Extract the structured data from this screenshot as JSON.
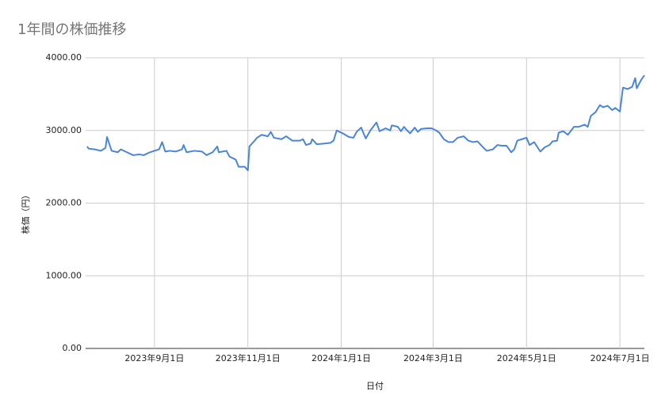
{
  "chart_data": {
    "type": "line",
    "title": "1年間の株価推移",
    "x_label": "日付",
    "y_label": "株価（円）",
    "color": "#4a86d8",
    "grid": true,
    "xlim": [
      "2023-07-18",
      "2024-07-17"
    ],
    "xticks": [
      {
        "value": "2023-09-01",
        "label": "2023年9月1日"
      },
      {
        "value": "2023-11-01",
        "label": "2023年11月1日"
      },
      {
        "value": "2024-01-01",
        "label": "2024年1月1日"
      },
      {
        "value": "2024-03-01",
        "label": "2024年3月1日"
      },
      {
        "value": "2024-05-01",
        "label": "2024年5月1日"
      },
      {
        "value": "2024-07-01",
        "label": "2024年7月1日"
      }
    ],
    "ylim": [
      0,
      4000
    ],
    "yticks": [
      {
        "value": 0,
        "label": "0.00"
      },
      {
        "value": 1000,
        "label": "1000.00"
      },
      {
        "value": 2000,
        "label": "2000.00"
      },
      {
        "value": 3000,
        "label": "3000.00"
      },
      {
        "value": 4000,
        "label": "4000.00"
      }
    ],
    "x": [
      "2023-07-19",
      "2023-07-20",
      "2023-07-24",
      "2023-07-28",
      "2023-07-31",
      "2023-08-01",
      "2023-08-04",
      "2023-08-08",
      "2023-08-10",
      "2023-08-14",
      "2023-08-18",
      "2023-08-22",
      "2023-08-25",
      "2023-08-29",
      "2023-09-01",
      "2023-09-04",
      "2023-09-06",
      "2023-09-08",
      "2023-09-11",
      "2023-09-15",
      "2023-09-19",
      "2023-09-20",
      "2023-09-22",
      "2023-09-27",
      "2023-10-02",
      "2023-10-05",
      "2023-10-09",
      "2023-10-12",
      "2023-10-13",
      "2023-10-18",
      "2023-10-20",
      "2023-10-24",
      "2023-10-26",
      "2023-10-30",
      "2023-11-01",
      "2023-11-02",
      "2023-11-05",
      "2023-11-07",
      "2023-11-10",
      "2023-11-14",
      "2023-11-16",
      "2023-11-18",
      "2023-11-23",
      "2023-11-26",
      "2023-11-30",
      "2023-12-05",
      "2023-12-07",
      "2023-12-09",
      "2023-12-12",
      "2023-12-13",
      "2023-12-16",
      "2023-12-21",
      "2023-12-25",
      "2023-12-27",
      "2023-12-29",
      "2024-01-02",
      "2024-01-06",
      "2024-01-09",
      "2024-01-11",
      "2024-01-14",
      "2024-01-17",
      "2024-01-20",
      "2024-01-24",
      "2024-01-26",
      "2024-01-30",
      "2024-02-02",
      "2024-02-03",
      "2024-02-07",
      "2024-02-09",
      "2024-02-11",
      "2024-02-13",
      "2024-02-15",
      "2024-02-18",
      "2024-02-20",
      "2024-02-22",
      "2024-02-26",
      "2024-02-29",
      "2024-03-03",
      "2024-03-05",
      "2024-03-08",
      "2024-03-11",
      "2024-03-14",
      "2024-03-17",
      "2024-03-21",
      "2024-03-24",
      "2024-03-27",
      "2024-03-30",
      "2024-04-03",
      "2024-04-05",
      "2024-04-09",
      "2024-04-12",
      "2024-04-15",
      "2024-04-18",
      "2024-04-21",
      "2024-04-23",
      "2024-04-25",
      "2024-04-28",
      "2024-05-01",
      "2024-05-03",
      "2024-05-06",
      "2024-05-10",
      "2024-05-13",
      "2024-05-16",
      "2024-05-18",
      "2024-05-21",
      "2024-05-22",
      "2024-05-25",
      "2024-05-28",
      "2024-06-01",
      "2024-06-04",
      "2024-06-08",
      "2024-06-10",
      "2024-06-12",
      "2024-06-15",
      "2024-06-18",
      "2024-06-20",
      "2024-06-23",
      "2024-06-26",
      "2024-06-28",
      "2024-07-01",
      "2024-07-03",
      "2024-07-06",
      "2024-07-09",
      "2024-07-11",
      "2024-07-12",
      "2024-07-15",
      "2024-07-17"
    ],
    "values": [
      2780,
      2750,
      2740,
      2720,
      2760,
      2910,
      2720,
      2700,
      2740,
      2700,
      2660,
      2670,
      2660,
      2700,
      2720,
      2740,
      2840,
      2710,
      2720,
      2710,
      2740,
      2800,
      2700,
      2720,
      2710,
      2660,
      2700,
      2780,
      2700,
      2720,
      2640,
      2600,
      2500,
      2500,
      2450,
      2780,
      2850,
      2900,
      2940,
      2920,
      2980,
      2900,
      2880,
      2920,
      2860,
      2860,
      2880,
      2800,
      2820,
      2880,
      2810,
      2820,
      2830,
      2860,
      3000,
      2960,
      2910,
      2900,
      2980,
      3040,
      2890,
      3000,
      3110,
      2990,
      3030,
      3000,
      3070,
      3050,
      2990,
      3050,
      3000,
      2960,
      3040,
      2980,
      3020,
      3030,
      3030,
      3000,
      2970,
      2880,
      2840,
      2840,
      2900,
      2920,
      2860,
      2840,
      2850,
      2760,
      2720,
      2740,
      2800,
      2790,
      2790,
      2700,
      2740,
      2860,
      2880,
      2900,
      2800,
      2840,
      2710,
      2770,
      2800,
      2850,
      2860,
      2970,
      2990,
      2940,
      3050,
      3050,
      3080,
      3050,
      3200,
      3250,
      3350,
      3320,
      3340,
      3280,
      3310,
      3260,
      3590,
      3570,
      3600,
      3720,
      3580,
      3700,
      3760
    ]
  }
}
